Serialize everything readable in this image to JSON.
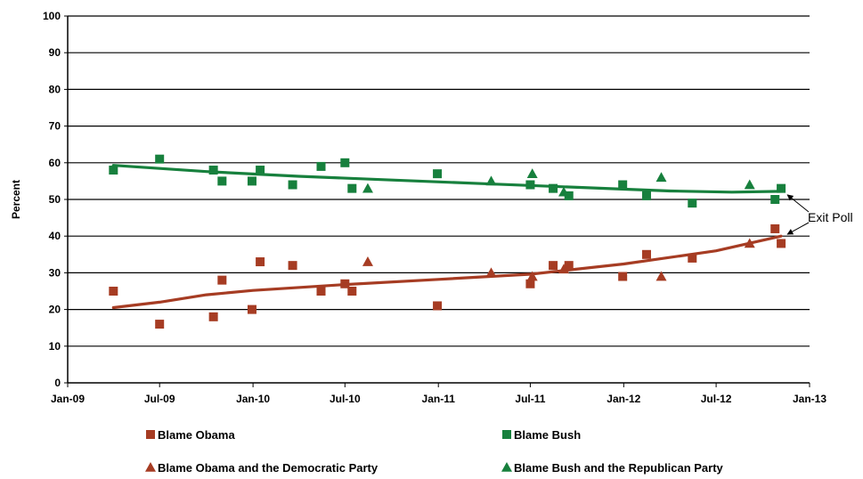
{
  "chart_data": {
    "type": "scatter",
    "ylabel": "Percent",
    "xlabel": "",
    "ylim": [
      0,
      100
    ],
    "y_ticks": [
      "0",
      "10",
      "20",
      "30",
      "40",
      "50",
      "60",
      "70",
      "80",
      "90",
      "100"
    ],
    "x_ticks": [
      {
        "label": "Jan-09",
        "date": "2009-01-01"
      },
      {
        "label": "Jul-09",
        "date": "2009-07-01"
      },
      {
        "label": "Jan-10",
        "date": "2010-01-01"
      },
      {
        "label": "Jul-10",
        "date": "2010-07-01"
      },
      {
        "label": "Jan-11",
        "date": "2011-01-01"
      },
      {
        "label": "Jul-11",
        "date": "2011-07-01"
      },
      {
        "label": "Jan-12",
        "date": "2012-01-01"
      },
      {
        "label": "Jul-12",
        "date": "2012-07-01"
      },
      {
        "label": "Jan-13",
        "date": "2013-01-01"
      }
    ],
    "xlim": [
      "2009-01-01",
      "2013-01-01"
    ],
    "grid": "horizontal",
    "legend_position": "bottom",
    "colors": {
      "obama": "#a63c23",
      "bush": "#17803d"
    },
    "series": [
      {
        "name": "Blame Obama",
        "marker": "square",
        "color": "#a63c23",
        "points": [
          {
            "x": "2009-04-01",
            "y": 25
          },
          {
            "x": "2009-07-01",
            "y": 16
          },
          {
            "x": "2009-10-15",
            "y": 18
          },
          {
            "x": "2009-11-01",
            "y": 28
          },
          {
            "x": "2009-12-30",
            "y": 20
          },
          {
            "x": "2010-01-15",
            "y": 33
          },
          {
            "x": "2010-03-20",
            "y": 32
          },
          {
            "x": "2010-05-15",
            "y": 25
          },
          {
            "x": "2010-07-01",
            "y": 27
          },
          {
            "x": "2010-07-15",
            "y": 25
          },
          {
            "x": "2010-12-30",
            "y": 21
          },
          {
            "x": "2011-07-01",
            "y": 27
          },
          {
            "x": "2011-08-15",
            "y": 32
          },
          {
            "x": "2011-09-15",
            "y": 32
          },
          {
            "x": "2011-12-30",
            "y": 29
          },
          {
            "x": "2012-02-15",
            "y": 35
          },
          {
            "x": "2012-05-15",
            "y": 34
          },
          {
            "x": "2012-10-25",
            "y": 42
          },
          {
            "x": "2012-11-06",
            "y": 38
          }
        ]
      },
      {
        "name": "Blame Bush",
        "marker": "square",
        "color": "#17803d",
        "points": [
          {
            "x": "2009-04-01",
            "y": 58
          },
          {
            "x": "2009-07-01",
            "y": 61
          },
          {
            "x": "2009-10-15",
            "y": 58
          },
          {
            "x": "2009-11-01",
            "y": 55
          },
          {
            "x": "2009-12-30",
            "y": 55
          },
          {
            "x": "2010-01-15",
            "y": 58
          },
          {
            "x": "2010-03-20",
            "y": 54
          },
          {
            "x": "2010-05-15",
            "y": 59
          },
          {
            "x": "2010-07-01",
            "y": 60
          },
          {
            "x": "2010-07-15",
            "y": 53
          },
          {
            "x": "2010-12-30",
            "y": 57
          },
          {
            "x": "2011-07-01",
            "y": 54
          },
          {
            "x": "2011-08-15",
            "y": 53
          },
          {
            "x": "2011-09-15",
            "y": 51
          },
          {
            "x": "2011-12-30",
            "y": 54
          },
          {
            "x": "2012-02-15",
            "y": 51
          },
          {
            "x": "2012-05-15",
            "y": 49
          },
          {
            "x": "2012-10-25",
            "y": 50
          },
          {
            "x": "2012-11-06",
            "y": 53
          }
        ]
      },
      {
        "name": "Blame Obama and the Democratic Party",
        "marker": "triangle",
        "color": "#a63c23",
        "points": [
          {
            "x": "2010-08-15",
            "y": 33
          },
          {
            "x": "2011-04-15",
            "y": 30
          },
          {
            "x": "2011-07-05",
            "y": 29
          },
          {
            "x": "2011-09-05",
            "y": 31
          },
          {
            "x": "2012-03-15",
            "y": 29
          },
          {
            "x": "2012-09-05",
            "y": 38
          }
        ]
      },
      {
        "name": "Blame Bush and the Republican Party",
        "marker": "triangle",
        "color": "#17803d",
        "points": [
          {
            "x": "2010-08-15",
            "y": 53
          },
          {
            "x": "2011-04-15",
            "y": 55
          },
          {
            "x": "2011-07-05",
            "y": 57
          },
          {
            "x": "2011-09-05",
            "y": 52
          },
          {
            "x": "2012-03-15",
            "y": 56
          },
          {
            "x": "2012-09-05",
            "y": 54
          }
        ]
      }
    ],
    "trendlines": [
      {
        "series": "Blame Bush",
        "color": "#17803d",
        "points": [
          {
            "x": "2009-04-01",
            "y": 59.3
          },
          {
            "x": "2009-10-01",
            "y": 57.6
          },
          {
            "x": "2010-04-01",
            "y": 56.3
          },
          {
            "x": "2010-10-01",
            "y": 55.3
          },
          {
            "x": "2011-04-01",
            "y": 54.3
          },
          {
            "x": "2011-10-01",
            "y": 53.3
          },
          {
            "x": "2012-04-01",
            "y": 52.3
          },
          {
            "x": "2012-08-01",
            "y": 52.0
          },
          {
            "x": "2012-11-06",
            "y": 52.2
          }
        ]
      },
      {
        "series": "Blame Obama",
        "color": "#a63c23",
        "points": [
          {
            "x": "2009-04-01",
            "y": 20.5
          },
          {
            "x": "2009-07-01",
            "y": 22.0
          },
          {
            "x": "2009-10-01",
            "y": 24.0
          },
          {
            "x": "2010-01-01",
            "y": 25.2
          },
          {
            "x": "2010-07-01",
            "y": 26.8
          },
          {
            "x": "2011-01-01",
            "y": 28.2
          },
          {
            "x": "2011-07-01",
            "y": 29.6
          },
          {
            "x": "2012-01-01",
            "y": 32.4
          },
          {
            "x": "2012-07-01",
            "y": 36.0
          },
          {
            "x": "2012-11-06",
            "y": 40.0
          }
        ]
      }
    ],
    "annotations": [
      {
        "text": "Exit Poll",
        "targets": [
          {
            "x": "2012-11-06",
            "y": 52
          },
          {
            "x": "2012-11-06",
            "y": 40
          }
        ]
      }
    ]
  }
}
